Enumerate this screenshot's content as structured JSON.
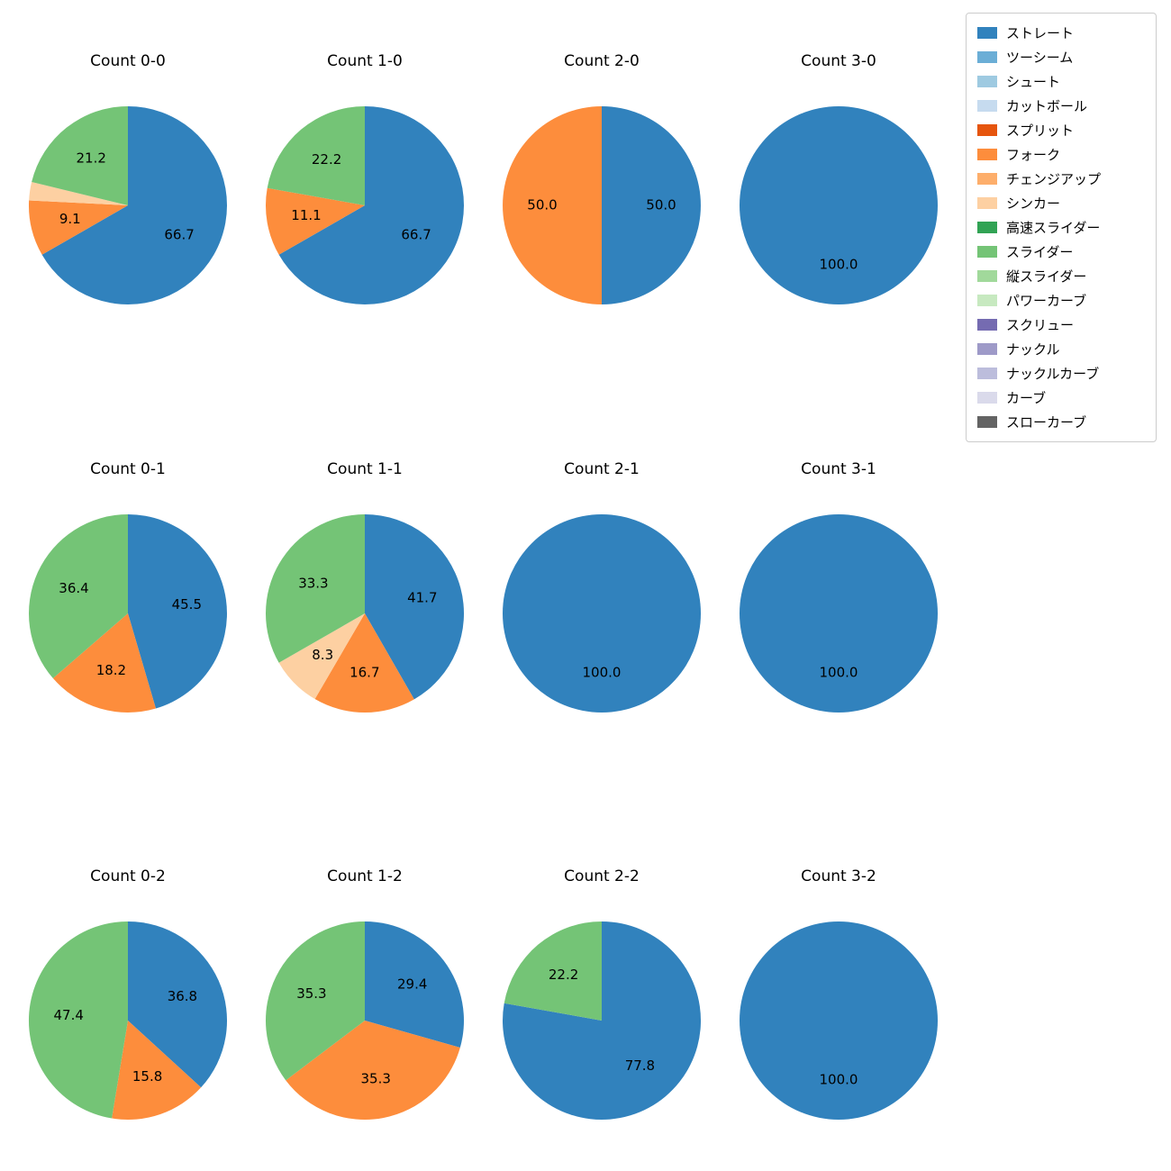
{
  "legend": {
    "items": [
      {
        "label": "ストレート",
        "color": "#3182bd"
      },
      {
        "label": "ツーシーム",
        "color": "#6baed6"
      },
      {
        "label": "シュート",
        "color": "#9ecae1"
      },
      {
        "label": "カットボール",
        "color": "#c6dbef"
      },
      {
        "label": "スプリット",
        "color": "#e6550d"
      },
      {
        "label": "フォーク",
        "color": "#fd8d3c"
      },
      {
        "label": "チェンジアップ",
        "color": "#fdae6b"
      },
      {
        "label": "シンカー",
        "color": "#fdd0a2"
      },
      {
        "label": "高速スライダー",
        "color": "#31a354"
      },
      {
        "label": "スライダー",
        "color": "#74c476"
      },
      {
        "label": "縦スライダー",
        "color": "#a1d99b"
      },
      {
        "label": "パワーカーブ",
        "color": "#c7e9c0"
      },
      {
        "label": "スクリュー",
        "color": "#756bb1"
      },
      {
        "label": "ナックル",
        "color": "#9e9ac8"
      },
      {
        "label": "ナックルカーブ",
        "color": "#bcbddc"
      },
      {
        "label": "カーブ",
        "color": "#dadaeb"
      },
      {
        "label": "スローカーブ",
        "color": "#636363"
      }
    ]
  },
  "chart_data": {
    "type": "pie",
    "value_unit": "percent",
    "start_angle_deg": 90,
    "direction": "clockwise",
    "label_distance": 0.6,
    "grid": {
      "columns": 4,
      "rows": 3
    },
    "charts": [
      {
        "title": "Count 0-0",
        "slices": [
          {
            "label": "ストレート",
            "value": 66.7
          },
          {
            "label": "フォーク",
            "value": 9.1
          },
          {
            "label": "シンカー",
            "value": 3.0,
            "show_value": false
          },
          {
            "label": "スライダー",
            "value": 21.2
          }
        ]
      },
      {
        "title": "Count 1-0",
        "slices": [
          {
            "label": "ストレート",
            "value": 66.7
          },
          {
            "label": "フォーク",
            "value": 11.1
          },
          {
            "label": "スライダー",
            "value": 22.2
          }
        ]
      },
      {
        "title": "Count 2-0",
        "slices": [
          {
            "label": "ストレート",
            "value": 50.0
          },
          {
            "label": "フォーク",
            "value": 50.0
          }
        ]
      },
      {
        "title": "Count 3-0",
        "slices": [
          {
            "label": "ストレート",
            "value": 100.0
          }
        ]
      },
      {
        "title": "Count 0-1",
        "slices": [
          {
            "label": "ストレート",
            "value": 45.5
          },
          {
            "label": "フォーク",
            "value": 18.2
          },
          {
            "label": "スライダー",
            "value": 36.4
          }
        ]
      },
      {
        "title": "Count 1-1",
        "slices": [
          {
            "label": "ストレート",
            "value": 41.7
          },
          {
            "label": "フォーク",
            "value": 16.7
          },
          {
            "label": "シンカー",
            "value": 8.3
          },
          {
            "label": "スライダー",
            "value": 33.3
          }
        ]
      },
      {
        "title": "Count 2-1",
        "slices": [
          {
            "label": "ストレート",
            "value": 100.0
          }
        ]
      },
      {
        "title": "Count 3-1",
        "slices": [
          {
            "label": "ストレート",
            "value": 100.0
          }
        ]
      },
      {
        "title": "Count 0-2",
        "slices": [
          {
            "label": "ストレート",
            "value": 36.8
          },
          {
            "label": "フォーク",
            "value": 15.8
          },
          {
            "label": "スライダー",
            "value": 47.4
          }
        ]
      },
      {
        "title": "Count 1-2",
        "slices": [
          {
            "label": "ストレート",
            "value": 29.4
          },
          {
            "label": "フォーク",
            "value": 35.3
          },
          {
            "label": "スライダー",
            "value": 35.3
          }
        ]
      },
      {
        "title": "Count 2-2",
        "slices": [
          {
            "label": "ストレート",
            "value": 77.8
          },
          {
            "label": "スライダー",
            "value": 22.2
          }
        ]
      },
      {
        "title": "Count 3-2",
        "slices": [
          {
            "label": "ストレート",
            "value": 100.0
          }
        ]
      }
    ]
  }
}
